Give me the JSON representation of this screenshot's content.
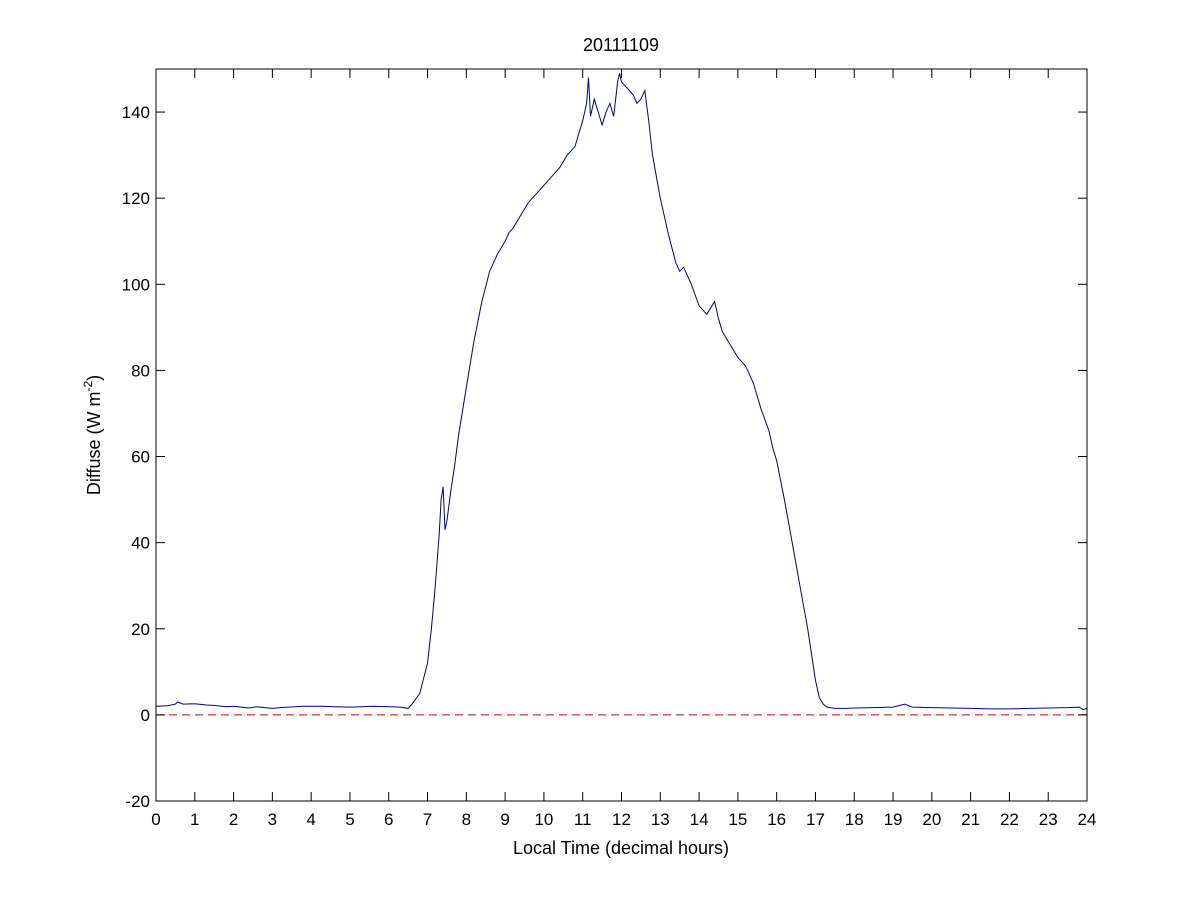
{
  "chart_data": {
    "type": "line",
    "title": "20111109",
    "xlabel": "Local Time (decimal hours)",
    "ylabel": {
      "main": "Diffuse (W m",
      "superscript": "-2",
      "close": ")"
    },
    "xlim": [
      0,
      24
    ],
    "ylim": [
      -20,
      150
    ],
    "xticks": [
      0,
      1,
      2,
      3,
      4,
      5,
      6,
      7,
      8,
      9,
      10,
      11,
      12,
      13,
      14,
      15,
      16,
      17,
      18,
      19,
      20,
      21,
      22,
      23,
      24
    ],
    "yticks": [
      -20,
      0,
      20,
      40,
      60,
      80,
      100,
      120,
      140
    ],
    "grid": false,
    "series": [
      {
        "color": "#00008B",
        "x": [
          0,
          0.3,
          0.5,
          0.55,
          0.7,
          1.0,
          1.3,
          1.5,
          1.8,
          2.0,
          2.2,
          2.4,
          2.6,
          2.8,
          3.0,
          3.2,
          3.4,
          3.6,
          3.8,
          4.0,
          4.3,
          4.6,
          5.0,
          5.3,
          5.6,
          6.0,
          6.3,
          6.5,
          6.6,
          6.8,
          7.0,
          7.1,
          7.2,
          7.3,
          7.35,
          7.4,
          7.45,
          7.5,
          7.6,
          7.7,
          7.8,
          8.0,
          8.2,
          8.4,
          8.6,
          8.8,
          9.0,
          9.1,
          9.2,
          9.4,
          9.6,
          9.8,
          10.0,
          10.2,
          10.4,
          10.6,
          10.8,
          10.9,
          11.0,
          11.1,
          11.15,
          11.2,
          11.3,
          11.4,
          11.5,
          11.6,
          11.7,
          11.8,
          11.9,
          11.95,
          12.0,
          12.1,
          12.2,
          12.3,
          12.4,
          12.5,
          12.6,
          12.7,
          12.8,
          12.9,
          13.0,
          13.2,
          13.4,
          13.5,
          13.6,
          13.8,
          14.0,
          14.2,
          14.4,
          14.5,
          14.6,
          14.8,
          15.0,
          15.2,
          15.4,
          15.6,
          15.8,
          15.9,
          16.0,
          16.2,
          16.4,
          16.6,
          16.8,
          17.0,
          17.1,
          17.2,
          17.3,
          17.5,
          17.8,
          18.0,
          18.5,
          19.0,
          19.3,
          19.5,
          20.0,
          20.5,
          21.0,
          21.5,
          22.0,
          22.5,
          23.0,
          23.5,
          23.8,
          23.9,
          24.0
        ],
        "y": [
          2,
          2.1,
          2.5,
          3,
          2.5,
          2.6,
          2.3,
          2.2,
          1.9,
          2.0,
          1.8,
          1.6,
          1.9,
          1.7,
          1.5,
          1.7,
          1.8,
          1.9,
          2.0,
          2.0,
          2.0,
          1.9,
          1.8,
          1.9,
          2.0,
          1.9,
          1.8,
          1.5,
          2.5,
          5,
          12,
          20,
          30,
          42,
          50,
          53,
          43,
          45,
          52,
          58,
          65,
          76,
          87,
          96,
          103,
          107,
          110,
          112,
          113,
          116,
          119,
          121,
          123,
          125,
          127,
          130,
          132,
          135,
          138,
          142,
          148,
          139,
          143,
          140,
          137,
          140,
          142,
          139,
          147,
          149,
          147,
          146,
          145,
          144,
          142,
          143,
          145,
          138,
          130,
          125,
          120,
          112,
          105,
          103,
          104,
          100,
          95,
          93,
          96,
          92,
          89,
          86,
          83,
          81,
          77,
          71,
          66,
          62,
          59,
          50,
          40,
          30,
          20,
          8,
          4,
          2.5,
          1.8,
          1.5,
          1.5,
          1.6,
          1.7,
          1.8,
          2.5,
          1.8,
          1.7,
          1.6,
          1.5,
          1.4,
          1.4,
          1.5,
          1.6,
          1.7,
          1.8,
          1.2,
          1.5
        ]
      },
      {
        "color": "#CC0000",
        "dashed": true,
        "x": [
          0,
          24
        ],
        "y": [
          0,
          0
        ]
      }
    ]
  }
}
